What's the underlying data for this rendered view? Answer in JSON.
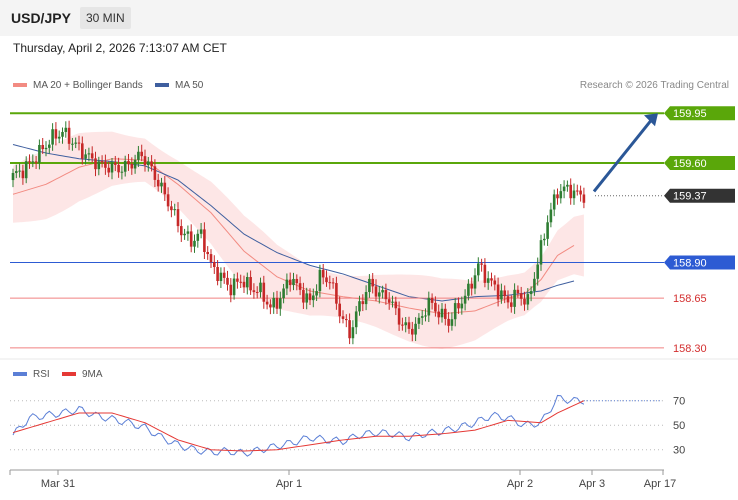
{
  "header": {
    "symbol": "USD/JPY",
    "timeframe": "30 MIN"
  },
  "datetime": "Thursday, April 2, 2026 7:13:07 AM CET",
  "credit": "Research © 2026 Trading Central",
  "colors": {
    "up": "#2e7d32",
    "down": "#c62828",
    "band_fill": "#fde2e2",
    "ma20": "#f28b82",
    "ma50": "#3f5f9f",
    "resistance": "#5aa70a",
    "pivot": "#2d5bd3",
    "support": "#f08080",
    "current": "#333333",
    "arrow": "#2b5797",
    "rsi": "#5b7fd6",
    "rsi_ma": "#e53935"
  },
  "chart_data": [
    {
      "type": "candlestick",
      "legend": [
        {
          "label": "MA 20 + Bollinger Bands",
          "color": "#f28b82"
        },
        {
          "label": "MA 50",
          "color": "#3f5f9f"
        }
      ],
      "ylim": [
        158.25,
        160.05
      ],
      "x_ticks": [
        "Mar 31",
        "Apr 1",
        "Apr 2",
        "Apr 3",
        "Apr 17"
      ],
      "levels": [
        {
          "label": "159.95",
          "value": 159.95,
          "kind": "resistance"
        },
        {
          "label": "159.60",
          "value": 159.6,
          "kind": "resistance"
        },
        {
          "label": "159.37",
          "value": 159.37,
          "kind": "current"
        },
        {
          "label": "158.90",
          "value": 158.9,
          "kind": "pivot"
        },
        {
          "label": "158.65",
          "value": 158.65,
          "kind": "support"
        },
        {
          "label": "158.30",
          "value": 158.3,
          "kind": "support"
        }
      ],
      "close_path": [
        [
          0,
          159.51
        ],
        [
          3,
          159.55
        ],
        [
          6,
          159.62
        ],
        [
          9,
          159.7
        ],
        [
          12,
          159.78
        ],
        [
          15,
          159.82
        ],
        [
          18,
          159.75
        ],
        [
          21,
          159.68
        ],
        [
          24,
          159.62
        ],
        [
          27,
          159.58
        ],
        [
          30,
          159.57
        ],
        [
          33,
          159.56
        ],
        [
          36,
          159.6
        ],
        [
          39,
          159.66
        ],
        [
          42,
          159.55
        ],
        [
          45,
          159.42
        ],
        [
          48,
          159.28
        ],
        [
          51,
          159.12
        ],
        [
          54,
          159.05
        ],
        [
          57,
          159.1
        ],
        [
          60,
          158.88
        ],
        [
          63,
          158.8
        ],
        [
          66,
          158.72
        ],
        [
          69,
          158.78
        ],
        [
          72,
          158.72
        ],
        [
          75,
          158.7
        ],
        [
          78,
          158.58
        ],
        [
          81,
          158.65
        ],
        [
          84,
          158.8
        ],
        [
          87,
          158.7
        ],
        [
          90,
          158.62
        ],
        [
          93,
          158.8
        ],
        [
          96,
          158.78
        ],
        [
          99,
          158.55
        ],
        [
          102,
          158.4
        ],
        [
          105,
          158.6
        ],
        [
          108,
          158.75
        ],
        [
          111,
          158.68
        ],
        [
          114,
          158.65
        ],
        [
          117,
          158.5
        ],
        [
          120,
          158.42
        ],
        [
          123,
          158.48
        ],
        [
          126,
          158.62
        ],
        [
          129,
          158.55
        ],
        [
          132,
          158.48
        ],
        [
          135,
          158.6
        ],
        [
          138,
          158.7
        ],
        [
          141,
          158.88
        ],
        [
          144,
          158.78
        ],
        [
          147,
          158.7
        ],
        [
          150,
          158.62
        ],
        [
          153,
          158.68
        ],
        [
          156,
          158.62
        ],
        [
          159,
          158.9
        ],
        [
          162,
          159.2
        ],
        [
          165,
          159.4
        ],
        [
          168,
          159.42
        ],
        [
          171,
          159.38
        ],
        [
          173,
          159.37
        ]
      ],
      "ma20_path": [
        [
          0,
          159.38
        ],
        [
          10,
          159.45
        ],
        [
          20,
          159.57
        ],
        [
          30,
          159.63
        ],
        [
          40,
          159.62
        ],
        [
          50,
          159.45
        ],
        [
          60,
          159.25
        ],
        [
          70,
          158.98
        ],
        [
          80,
          158.8
        ],
        [
          90,
          158.7
        ],
        [
          100,
          158.66
        ],
        [
          110,
          158.63
        ],
        [
          120,
          158.58
        ],
        [
          130,
          158.54
        ],
        [
          140,
          158.56
        ],
        [
          150,
          158.65
        ],
        [
          155,
          158.68
        ],
        [
          160,
          158.78
        ],
        [
          165,
          158.95
        ],
        [
          170,
          159.02
        ]
      ],
      "ma50_path": [
        [
          0,
          159.73
        ],
        [
          10,
          159.67
        ],
        [
          20,
          159.63
        ],
        [
          30,
          159.61
        ],
        [
          40,
          159.58
        ],
        [
          50,
          159.48
        ],
        [
          60,
          159.3
        ],
        [
          70,
          159.1
        ],
        [
          80,
          158.97
        ],
        [
          90,
          158.88
        ],
        [
          100,
          158.82
        ],
        [
          110,
          158.74
        ],
        [
          120,
          158.66
        ],
        [
          130,
          158.63
        ],
        [
          140,
          158.66
        ],
        [
          150,
          158.67
        ],
        [
          160,
          158.7
        ],
        [
          165,
          158.74
        ],
        [
          170,
          158.77
        ]
      ],
      "bb_width": 0.2,
      "target_arrow": {
        "from": 159.4,
        "to": 159.95
      }
    },
    {
      "type": "line",
      "legend": [
        {
          "label": "RSI",
          "color": "#5b7fd6"
        },
        {
          "label": "9MA",
          "color": "#e53935"
        }
      ],
      "ylim": [
        20,
        82
      ],
      "y_ticks": [
        "70",
        "50",
        "30"
      ],
      "rsi_path": [
        [
          0,
          42
        ],
        [
          5,
          56
        ],
        [
          10,
          58
        ],
        [
          15,
          60
        ],
        [
          20,
          63
        ],
        [
          25,
          58
        ],
        [
          30,
          55
        ],
        [
          35,
          52
        ],
        [
          40,
          48
        ],
        [
          45,
          40
        ],
        [
          50,
          34
        ],
        [
          55,
          30
        ],
        [
          60,
          28
        ],
        [
          65,
          29
        ],
        [
          70,
          27
        ],
        [
          75,
          30
        ],
        [
          80,
          33
        ],
        [
          85,
          36
        ],
        [
          90,
          40
        ],
        [
          95,
          38
        ],
        [
          100,
          37
        ],
        [
          105,
          42
        ],
        [
          110,
          44
        ],
        [
          115,
          43
        ],
        [
          120,
          40
        ],
        [
          125,
          43
        ],
        [
          130,
          45
        ],
        [
          135,
          48
        ],
        [
          140,
          52
        ],
        [
          145,
          58
        ],
        [
          150,
          56
        ],
        [
          155,
          50
        ],
        [
          160,
          52
        ],
        [
          165,
          72
        ],
        [
          170,
          70
        ],
        [
          173,
          70
        ]
      ],
      "rsi_ma_path": [
        [
          0,
          44
        ],
        [
          10,
          52
        ],
        [
          20,
          60
        ],
        [
          30,
          60
        ],
        [
          40,
          52
        ],
        [
          50,
          38
        ],
        [
          60,
          30
        ],
        [
          70,
          29
        ],
        [
          80,
          30
        ],
        [
          90,
          34
        ],
        [
          100,
          38
        ],
        [
          110,
          41
        ],
        [
          120,
          41
        ],
        [
          130,
          43
        ],
        [
          140,
          46
        ],
        [
          150,
          54
        ],
        [
          155,
          53
        ],
        [
          160,
          52
        ],
        [
          165,
          60
        ],
        [
          173,
          70
        ]
      ]
    }
  ]
}
